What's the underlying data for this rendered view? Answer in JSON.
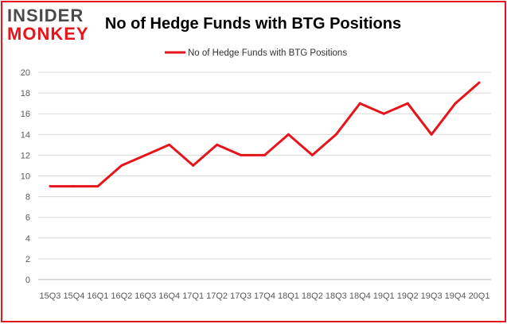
{
  "logo": {
    "line1": "INSIDER",
    "line2": "MONKEY"
  },
  "colors": {
    "series": "#e8141b",
    "border": "#e8141b",
    "grid": "#d9d9d9",
    "axis_text": "#595959",
    "logo_dark": "#4a4a4a",
    "logo_red": "#e8141b"
  },
  "chart_data": {
    "type": "line",
    "title": "No of Hedge Funds with BTG Positions",
    "xlabel": "",
    "ylabel": "",
    "ylim": [
      0,
      20
    ],
    "yticks": [
      0,
      2,
      4,
      6,
      8,
      10,
      12,
      14,
      16,
      18,
      20
    ],
    "grid": true,
    "legend": "top-center",
    "categories": [
      "15Q3",
      "15Q4",
      "16Q1",
      "16Q2",
      "16Q3",
      "16Q4",
      "17Q1",
      "17Q2",
      "17Q3",
      "17Q4",
      "18Q1",
      "18Q2",
      "18Q3",
      "18Q4",
      "19Q1",
      "19Q2",
      "19Q3",
      "19Q4",
      "20Q1"
    ],
    "series": [
      {
        "name": "No of Hedge Funds with BTG Positions",
        "values": [
          9,
          9,
          9,
          11,
          12,
          13,
          11,
          13,
          12,
          12,
          14,
          12,
          14,
          17,
          16,
          17,
          14,
          17,
          19
        ]
      }
    ]
  }
}
